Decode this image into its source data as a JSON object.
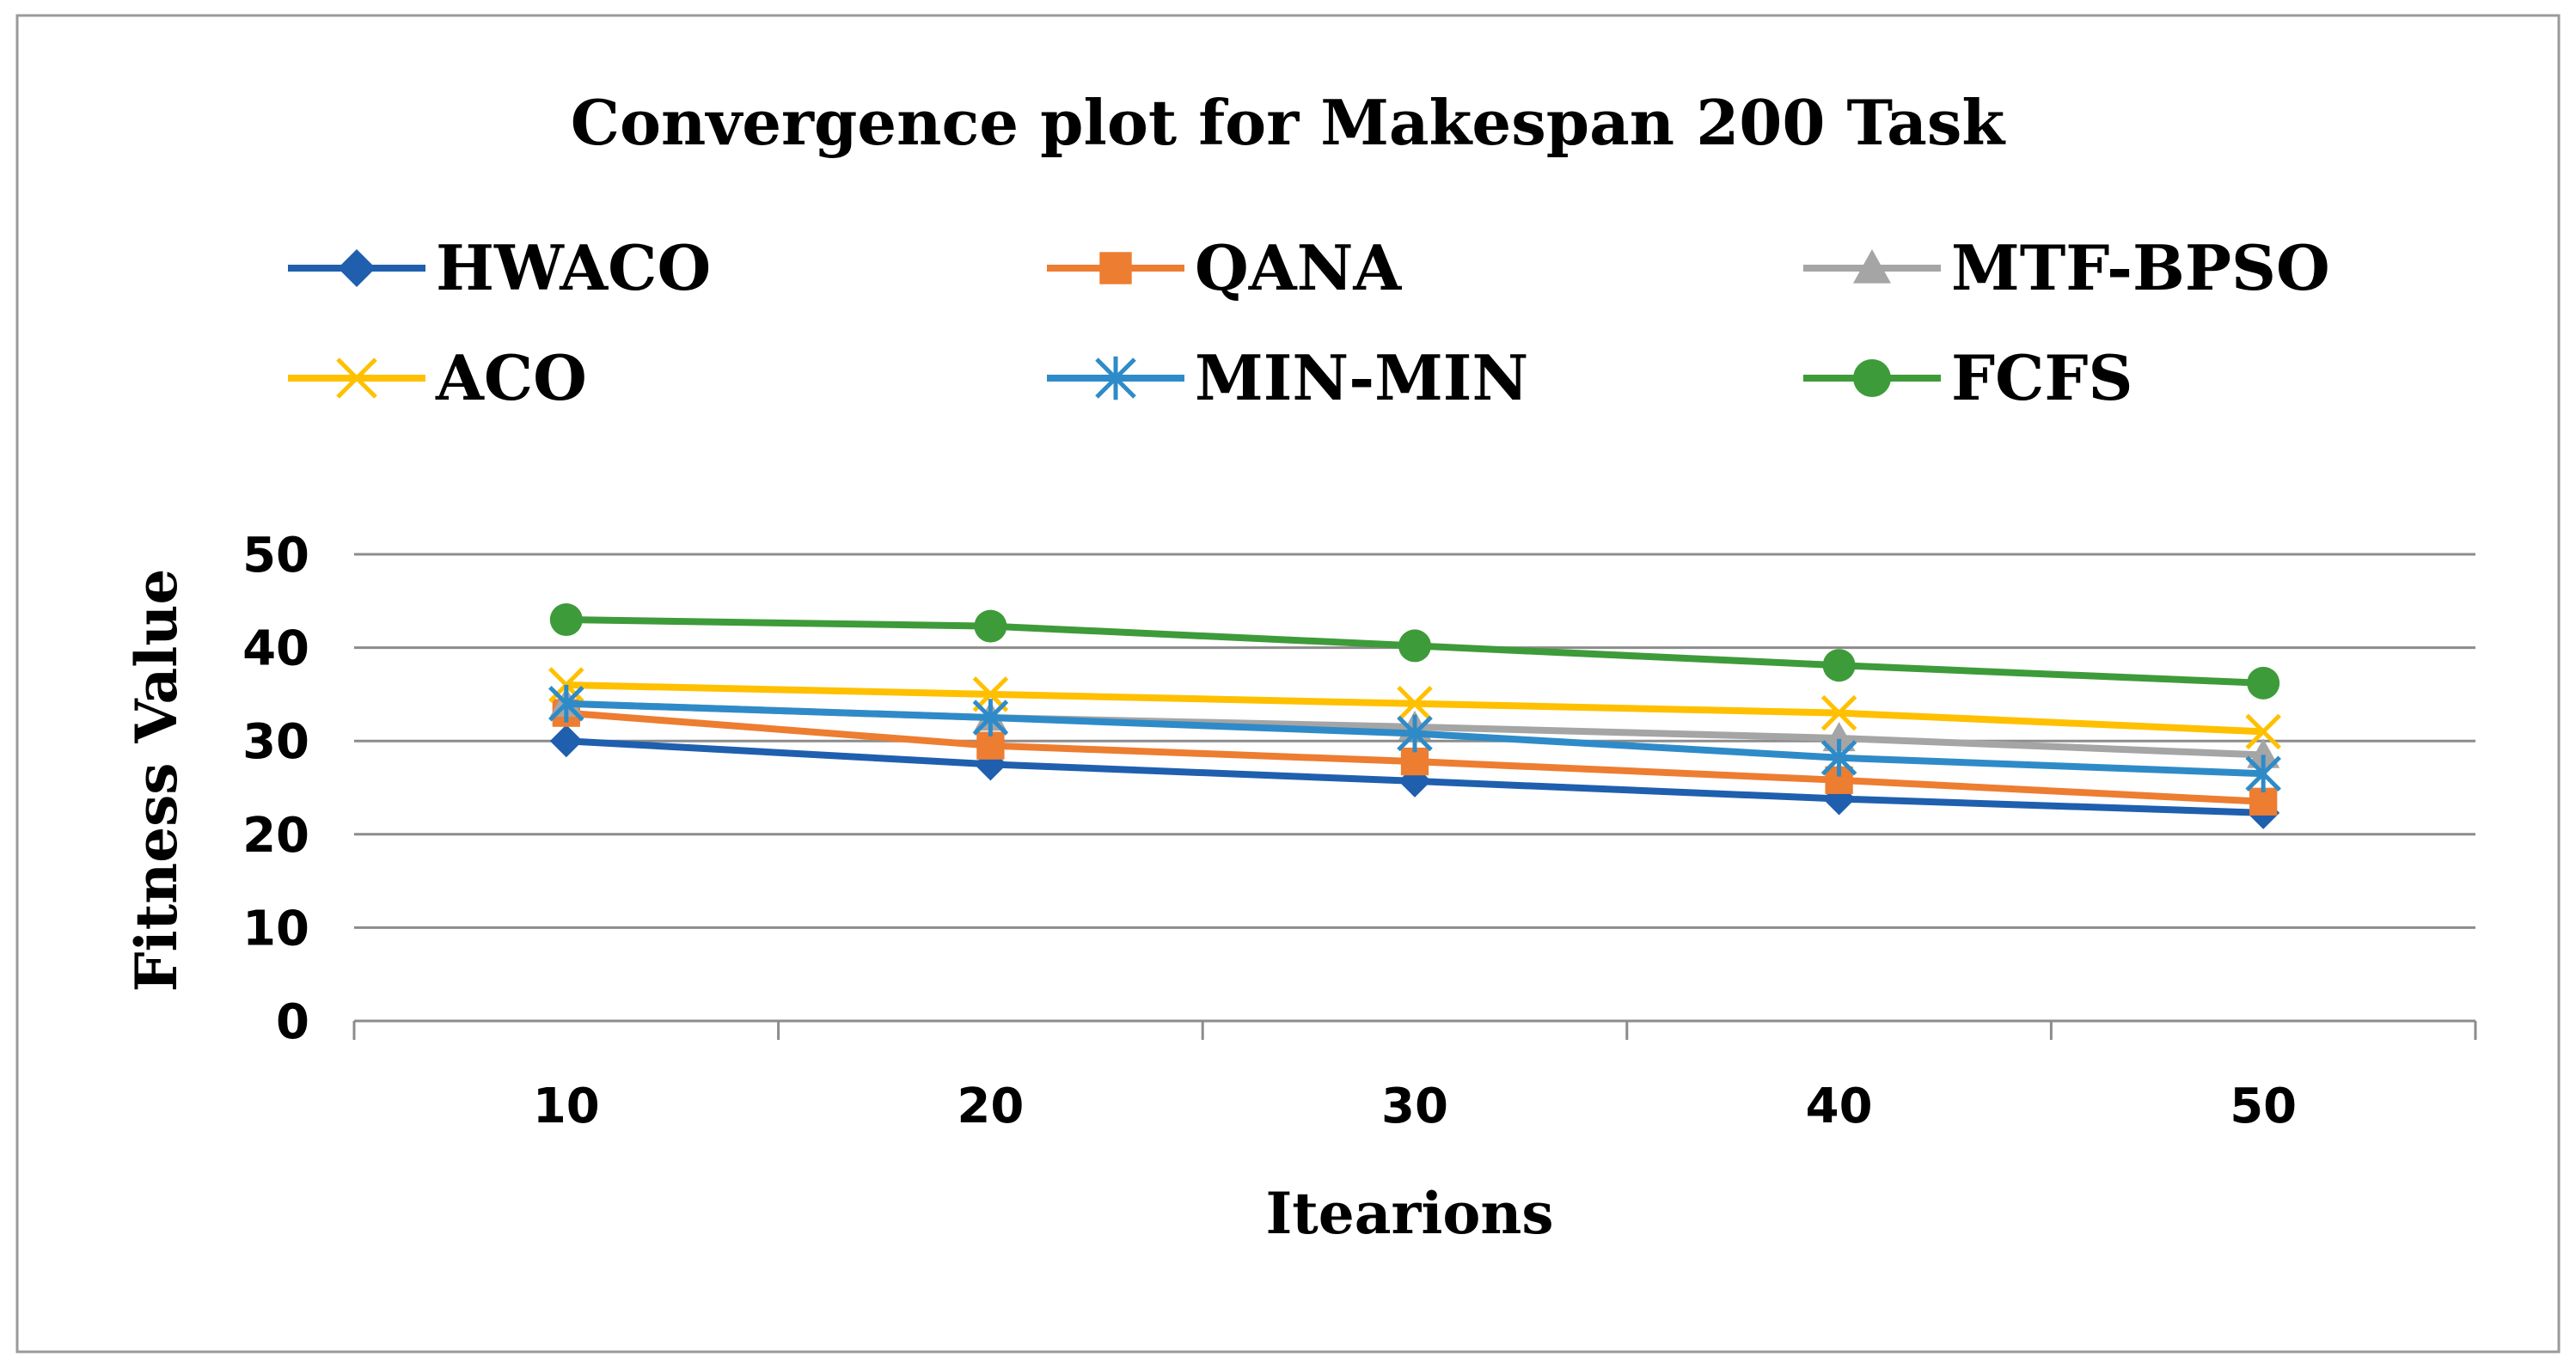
{
  "chart_data": {
    "type": "line",
    "title": "Convergence plot for Makespan 200 Task",
    "xlabel": "Itearions",
    "ylabel": "Fitness Value",
    "categories": [
      "10",
      "20",
      "30",
      "40",
      "50"
    ],
    "ylim": [
      0,
      50
    ],
    "yticks": [
      "0",
      "10",
      "20",
      "30",
      "40",
      "50"
    ],
    "grid": true,
    "legend_position": "top",
    "series": [
      {
        "name": "HWACO",
        "color": "#1F5FAE",
        "marker": "diamond",
        "values": [
          30,
          27.5,
          25.7,
          23.8,
          22.3
        ]
      },
      {
        "name": "QANA",
        "color": "#ED7D31",
        "marker": "square",
        "values": [
          33,
          29.5,
          27.8,
          25.8,
          23.5
        ]
      },
      {
        "name": "MTF-BPSO",
        "color": "#A5A5A5",
        "marker": "triangle",
        "values": [
          34,
          32.5,
          31.5,
          30.3,
          28.5
        ]
      },
      {
        "name": "ACO",
        "color": "#FFC000",
        "marker": "x",
        "values": [
          36,
          35,
          34,
          33,
          31
        ]
      },
      {
        "name": "MIN-MIN",
        "color": "#2E8BC8",
        "marker": "star",
        "values": [
          34,
          32.5,
          30.8,
          28.2,
          26.5
        ]
      },
      {
        "name": "FCFS",
        "color": "#3E9B3A",
        "marker": "circle",
        "values": [
          43,
          42.3,
          40.2,
          38.1,
          36.2
        ]
      }
    ]
  }
}
